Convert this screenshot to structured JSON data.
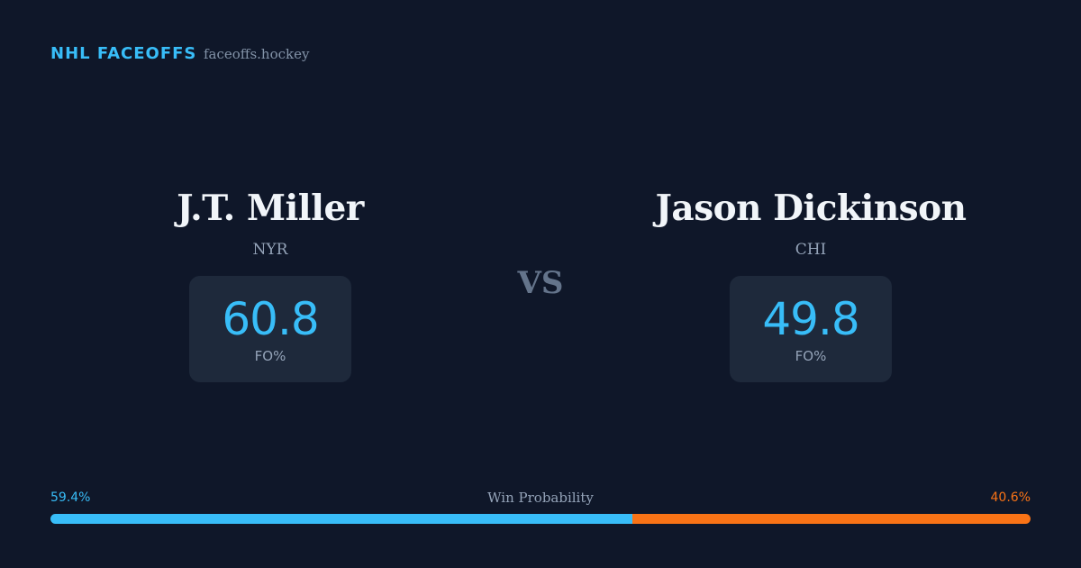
{
  "header": {
    "title": "NHL FACEOFFS",
    "site": "faceoffs.hockey"
  },
  "players": [
    {
      "name": "J.T. Miller",
      "team": "NYR",
      "fo_value": 60.8,
      "fo_label": "FO%",
      "color": "#38bdf8"
    },
    {
      "name": "Jason Dickinson",
      "team": "CHI",
      "fo_value": 49.8,
      "fo_label": "FO%",
      "color": "#38bdf8"
    }
  ],
  "vs": "VS",
  "win_probability": {
    "label": "Win Probability",
    "segments": [
      {
        "value": 59.4,
        "label": "59.4%",
        "color": "#38bdf8"
      },
      {
        "value": 40.6,
        "label": "40.6%",
        "color": "#f97316"
      }
    ]
  }
}
